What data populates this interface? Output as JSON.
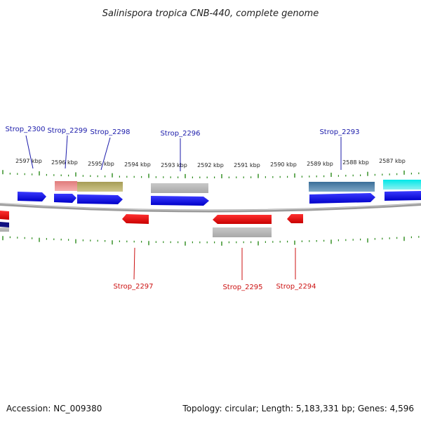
{
  "title": "Salinispora tropica CNB-440, complete genome",
  "footer": {
    "accession": "Accession: NC_009380",
    "summary": "Topology: circular; Length: 5,183,331 bp; Genes: 4,596"
  },
  "ruler_labels": [
    "2597 kbp",
    "2596 kbp",
    "2595 kbp",
    "2594 kbp",
    "2593 kbp",
    "2592 kbp",
    "2591 kbp",
    "2590 kbp",
    "2589 kbp",
    "2588 kbp",
    "2587 kbp"
  ],
  "genes_top": [
    {
      "id": "g2300",
      "label": "Strop_2300"
    },
    {
      "id": "g2299",
      "label": "Strop_2299"
    },
    {
      "id": "g2298",
      "label": "Strop_2298"
    },
    {
      "id": "g2296",
      "label": "Strop_2296"
    },
    {
      "id": "g2293",
      "label": "Strop_2293"
    }
  ],
  "genes_bottom": [
    {
      "id": "g2297",
      "label": "Strop_2297"
    },
    {
      "id": "g2295",
      "label": "Strop_2295"
    },
    {
      "id": "g2294",
      "label": "Strop_2294"
    }
  ],
  "colors": {
    "forward_gene": "#0000ee",
    "reverse_gene": "#ee0000",
    "ruler_tick": "#2a8a1a",
    "backbone": "#8a8a8a",
    "label_top": "#1a1aaa",
    "label_bottom": "#cc1111",
    "pink_feature": "#e88a8a",
    "olive_feature": "#b5ad68",
    "grey_feature": "#bdbdbd",
    "steel_feature": "#4a7fa8",
    "cyan_feature": "#22dddd"
  }
}
